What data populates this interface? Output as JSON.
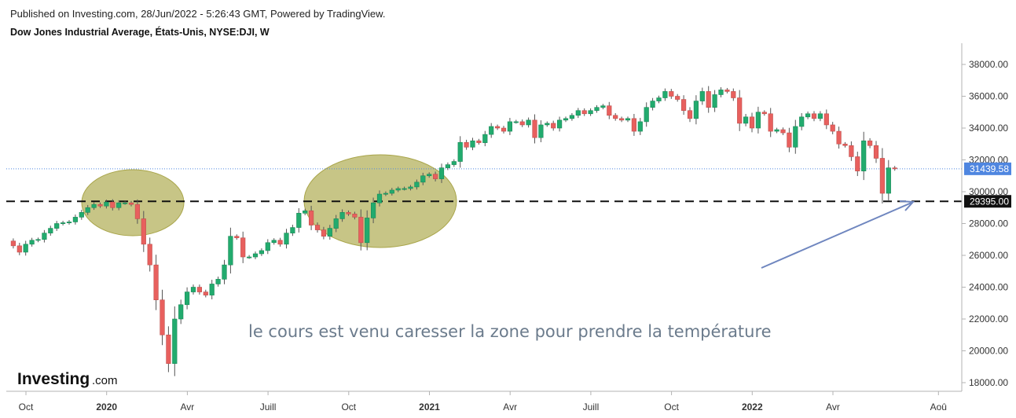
{
  "header": {
    "published": "Published on Investing.com, 28/Jun/2022 - 5:26:43 GMT, Powered by TradingView.",
    "symbol": "Dow Jones Industrial Average, États-Unis, NYSE:DJI, W"
  },
  "logo": {
    "main": "Investing",
    "suffix": ".com"
  },
  "annotation": "le cours est venu caresser la zone pour prendre la température",
  "colors": {
    "up": "#22ab6e",
    "down": "#e8605e",
    "ellipse": "#c7c586",
    "last_price_bg": "#4f86e0",
    "arrow": "#6f86bf"
  },
  "chart_data": {
    "type": "candlestick",
    "title": "Dow Jones Industrial Average, États-Unis, NYSE:DJI, W",
    "ylim": [
      17000,
      39500
    ],
    "yticks": [
      18000,
      20000,
      22000,
      24000,
      26000,
      28000,
      30000,
      32000,
      34000,
      36000,
      38000
    ],
    "ytick_labels": [
      "18000.00",
      "20000.00",
      "22000.00",
      "24000.00",
      "26000.00",
      "28000.00",
      "30000.00",
      "32000.00",
      "34000.00",
      "36000.00",
      "38000.00"
    ],
    "xticks": [
      {
        "label": "Oct",
        "bold": false,
        "week": 0
      },
      {
        "label": "2020",
        "bold": true,
        "week": 13
      },
      {
        "label": "Avr",
        "bold": false,
        "week": 26
      },
      {
        "label": "Juill",
        "bold": false,
        "week": 39
      },
      {
        "label": "Oct",
        "bold": false,
        "week": 52
      },
      {
        "label": "2021",
        "bold": true,
        "week": 65
      },
      {
        "label": "Avr",
        "bold": false,
        "week": 78
      },
      {
        "label": "Juill",
        "bold": false,
        "week": 91
      },
      {
        "label": "Oct",
        "bold": false,
        "week": 104
      },
      {
        "label": "2022",
        "bold": true,
        "week": 117
      },
      {
        "label": "Avr",
        "bold": false,
        "week": 130
      },
      {
        "label": "Aoû",
        "bold": false,
        "week": 147
      }
    ],
    "last_price": 31439.58,
    "last_price_label": "31439.58",
    "support_level": 29395.0,
    "support_label": "29395.00",
    "closes": [
      26900,
      26600,
      26200,
      26700,
      26950,
      27000,
      27400,
      27700,
      28000,
      28050,
      28100,
      28400,
      28700,
      29000,
      29200,
      29100,
      29350,
      29000,
      29300,
      29300,
      29200,
      28300,
      26700,
      25400,
      23200,
      21000,
      19200,
      22000,
      22900,
      23700,
      24000,
      23700,
      23500,
      24200,
      24500,
      25400,
      27200,
      27100,
      25900,
      25900,
      26100,
      26300,
      26800,
      26950,
      26700,
      27400,
      27750,
      28650,
      28800,
      27900,
      27600,
      27200,
      27700,
      28300,
      28700,
      28600,
      28400,
      26800,
      28350,
      29300,
      29850,
      29900,
      30100,
      30200,
      30200,
      30300,
      30600,
      31000,
      31100,
      30810,
      31500,
      31700,
      31900,
      33100,
      32800,
      33200,
      33080,
      33600,
      34100,
      34000,
      33800,
      34400,
      34400,
      34200,
      34500,
      33400,
      34200,
      34300,
      34000,
      34500,
      34600,
      34800,
      35100,
      34900,
      35100,
      35300,
      35400,
      34800,
      34600,
      34500,
      34600,
      33800,
      34400,
      35300,
      35700,
      35900,
      36300,
      36000,
      35800,
      35100,
      34600,
      35700,
      36300,
      35300,
      36100,
      36400,
      36300,
      35900,
      34300,
      34700,
      34000,
      35000,
      34900,
      33800,
      33900,
      33700,
      32800,
      34100,
      34700,
      34900,
      34600,
      34900,
      34200,
      33800,
      33000,
      32900,
      32200,
      31300,
      33200,
      32900,
      32100,
      29900,
      31500,
      31439.58
    ]
  }
}
